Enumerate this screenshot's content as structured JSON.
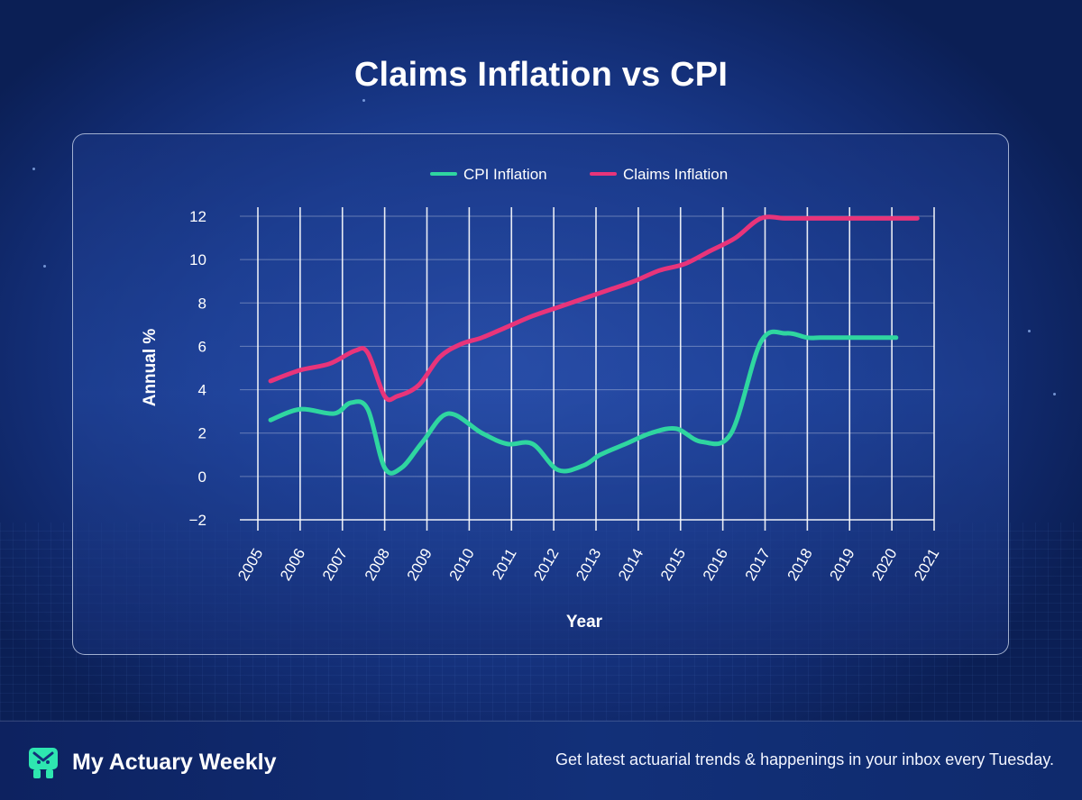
{
  "header": {
    "title": "Claims Inflation vs CPI"
  },
  "chart_data": {
    "type": "line",
    "title": "Claims Inflation vs CPI",
    "xlabel": "Year",
    "ylabel": "Annual %",
    "ylim": [
      -2,
      12
    ],
    "yticks": [
      "12",
      "10",
      "8",
      "6",
      "4",
      "2",
      "0",
      "−2"
    ],
    "ytick_values": [
      12,
      10,
      8,
      6,
      4,
      2,
      0,
      -2
    ],
    "xlim": [
      2005,
      2021
    ],
    "xticks": [
      "2005",
      "2006",
      "2007",
      "2008",
      "2009",
      "2010",
      "2011",
      "2012",
      "2013",
      "2014",
      "2015",
      "2016",
      "2017",
      "2018",
      "2019",
      "2020",
      "2021"
    ],
    "legend_position": "top-center",
    "grid": true,
    "series": [
      {
        "name": "CPI Inflation",
        "color": "#2fd6a0",
        "x": [
          2005.3,
          2006.0,
          2006.8,
          2007.2,
          2007.6,
          2008.0,
          2008.4,
          2008.9,
          2009.5,
          2010.3,
          2010.9,
          2011.5,
          2012.1,
          2012.7,
          2013.1,
          2013.7,
          2014.3,
          2014.9,
          2015.5,
          2016.2,
          2016.9,
          2017.5,
          2018.0,
          2018.3,
          2018.8,
          2019.2,
          2019.6,
          2020.1
        ],
        "y": [
          2.6,
          3.1,
          2.9,
          3.4,
          3.1,
          0.4,
          0.4,
          1.6,
          2.9,
          2.0,
          1.5,
          1.5,
          0.3,
          0.5,
          1.0,
          1.5,
          2.0,
          2.2,
          1.6,
          2.0,
          6.2,
          6.6,
          6.4,
          6.4,
          6.4,
          6.4,
          6.4,
          6.4
        ]
      },
      {
        "name": "Claims Inflation",
        "color": "#e8347a",
        "x": [
          2005.3,
          2006.0,
          2006.7,
          2007.3,
          2007.6,
          2008.0,
          2008.3,
          2008.8,
          2009.3,
          2009.8,
          2010.3,
          2010.9,
          2011.5,
          2012.1,
          2012.7,
          2013.3,
          2013.9,
          2014.5,
          2015.1,
          2015.7,
          2016.3,
          2016.9,
          2017.5,
          2018.1,
          2018.7,
          2019.3,
          2019.9,
          2020.6
        ],
        "y": [
          4.4,
          4.9,
          5.2,
          5.8,
          5.7,
          3.7,
          3.7,
          4.2,
          5.5,
          6.1,
          6.4,
          6.9,
          7.4,
          7.8,
          8.2,
          8.6,
          9.0,
          9.5,
          9.8,
          10.4,
          11.0,
          11.9,
          11.9,
          11.9,
          11.9,
          11.9,
          11.9,
          11.9
        ]
      }
    ]
  },
  "footer": {
    "brand": "My Actuary Weekly",
    "tagline": "Get latest actuarial trends & happenings in your inbox every Tuesday."
  }
}
